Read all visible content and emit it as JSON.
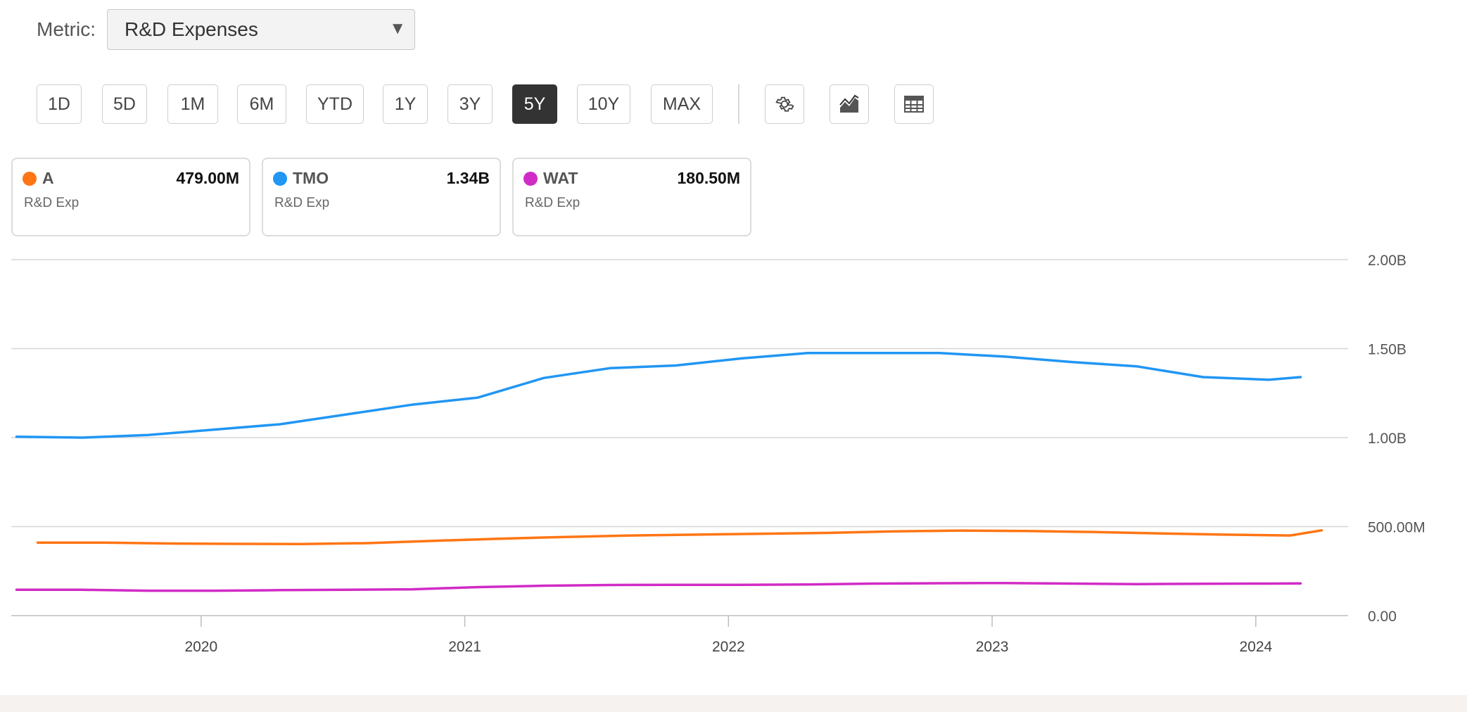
{
  "metric": {
    "label": "Metric:",
    "selected": "R&D Expenses"
  },
  "ranges": [
    "1D",
    "5D",
    "1M",
    "6M",
    "YTD",
    "1Y",
    "3Y",
    "5Y",
    "10Y",
    "MAX"
  ],
  "active_range": "5Y",
  "tools": [
    {
      "name": "settings",
      "icon": "gear-icon"
    },
    {
      "name": "chart-type",
      "icon": "area-chart-icon"
    },
    {
      "name": "table-view",
      "icon": "table-icon"
    }
  ],
  "legend": [
    {
      "ticker": "A",
      "value": "479.00M",
      "sub": "R&D Exp",
      "color": "#ff7514"
    },
    {
      "ticker": "TMO",
      "value": "1.34B",
      "sub": "R&D Exp",
      "color": "#2196f3"
    },
    {
      "ticker": "WAT",
      "value": "180.50M",
      "sub": "R&D Exp",
      "color": "#d12bc6"
    }
  ],
  "chart_data": {
    "type": "line",
    "title": "",
    "xlabel": "",
    "ylabel": "",
    "y_unit": "millions USD",
    "y_ticks": [
      {
        "value": 0,
        "label": "0.00"
      },
      {
        "value": 500,
        "label": "500.00M"
      },
      {
        "value": 1000,
        "label": "1.00B"
      },
      {
        "value": 1500,
        "label": "1.50B"
      },
      {
        "value": 2000,
        "label": "2.00B"
      }
    ],
    "ylim": [
      0,
      2000
    ],
    "x_ticks": [
      2020,
      2021,
      2022,
      2023,
      2024
    ],
    "xlim": [
      2019.28,
      2024.35
    ],
    "grid": true,
    "y_axis_side": "right",
    "series": [
      {
        "name": "A",
        "color": "#ff7514",
        "points": [
          [
            2019.38,
            410
          ],
          [
            2019.63,
            410
          ],
          [
            2019.88,
            405
          ],
          [
            2020.13,
            403
          ],
          [
            2020.38,
            402
          ],
          [
            2020.63,
            407
          ],
          [
            2020.88,
            420
          ],
          [
            2021.13,
            432
          ],
          [
            2021.38,
            442
          ],
          [
            2021.63,
            450
          ],
          [
            2021.88,
            455
          ],
          [
            2022.13,
            460
          ],
          [
            2022.38,
            465
          ],
          [
            2022.63,
            473
          ],
          [
            2022.88,
            478
          ],
          [
            2023.13,
            475
          ],
          [
            2023.38,
            470
          ],
          [
            2023.63,
            462
          ],
          [
            2023.88,
            455
          ],
          [
            2024.13,
            450
          ],
          [
            2024.25,
            479
          ]
        ]
      },
      {
        "name": "TMO",
        "color": "#2196f3",
        "points": [
          [
            2019.3,
            1005
          ],
          [
            2019.55,
            1000
          ],
          [
            2019.8,
            1015
          ],
          [
            2020.05,
            1045
          ],
          [
            2020.3,
            1075
          ],
          [
            2020.55,
            1130
          ],
          [
            2020.8,
            1185
          ],
          [
            2021.05,
            1225
          ],
          [
            2021.3,
            1335
          ],
          [
            2021.55,
            1390
          ],
          [
            2021.8,
            1405
          ],
          [
            2022.05,
            1445
          ],
          [
            2022.3,
            1475
          ],
          [
            2022.55,
            1475
          ],
          [
            2022.8,
            1475
          ],
          [
            2023.05,
            1455
          ],
          [
            2023.3,
            1425
          ],
          [
            2023.55,
            1400
          ],
          [
            2023.8,
            1340
          ],
          [
            2024.05,
            1325
          ],
          [
            2024.17,
            1340
          ]
        ]
      },
      {
        "name": "WAT",
        "color": "#d12bc6",
        "points": [
          [
            2019.3,
            145
          ],
          [
            2019.55,
            145
          ],
          [
            2019.8,
            140
          ],
          [
            2020.05,
            140
          ],
          [
            2020.3,
            143
          ],
          [
            2020.55,
            145
          ],
          [
            2020.8,
            148
          ],
          [
            2021.05,
            160
          ],
          [
            2021.3,
            168
          ],
          [
            2021.55,
            172
          ],
          [
            2021.8,
            173
          ],
          [
            2022.05,
            173
          ],
          [
            2022.3,
            175
          ],
          [
            2022.55,
            180
          ],
          [
            2022.8,
            182
          ],
          [
            2023.05,
            183
          ],
          [
            2023.3,
            180
          ],
          [
            2023.55,
            177
          ],
          [
            2023.8,
            179
          ],
          [
            2024.05,
            180
          ],
          [
            2024.17,
            180.5
          ]
        ]
      }
    ]
  }
}
